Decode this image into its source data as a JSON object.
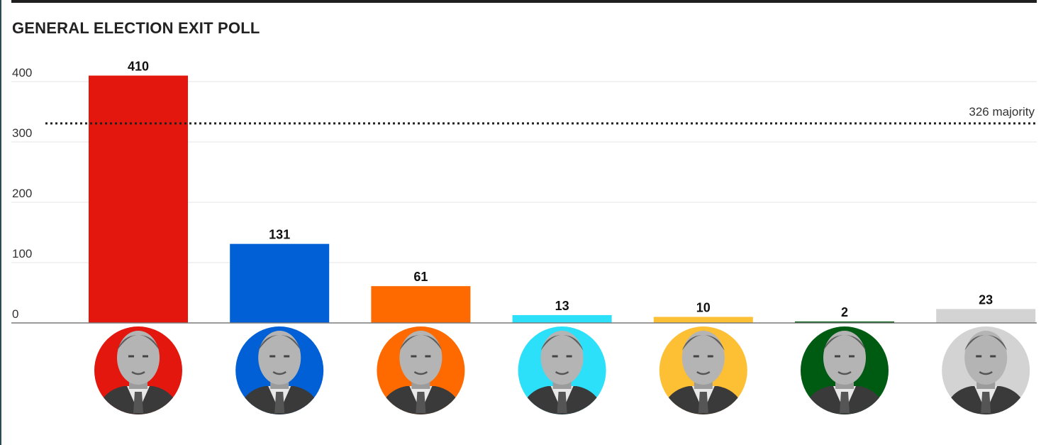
{
  "chart_data": {
    "type": "bar",
    "title": "GENERAL ELECTION EXIT POLL",
    "xlabel": "",
    "ylabel": "",
    "ylim": [
      0,
      400
    ],
    "yticks": [
      0,
      100,
      200,
      300,
      400
    ],
    "grid": true,
    "categories": [
      {
        "value": 410,
        "color": "#e4170f"
      },
      {
        "value": 131,
        "color": "#0160d5"
      },
      {
        "value": 61,
        "color": "#fe6900"
      },
      {
        "value": 13,
        "color": "#2be0f8"
      },
      {
        "value": 10,
        "color": "#fdbf34"
      },
      {
        "value": 2,
        "color": "#005b12"
      },
      {
        "value": 23,
        "color": "#d3d3d3"
      }
    ],
    "values": [
      410,
      131,
      61,
      13,
      10,
      2,
      23
    ],
    "reference_line": {
      "value": 326,
      "label": "326 majority",
      "style": "dotted"
    }
  }
}
